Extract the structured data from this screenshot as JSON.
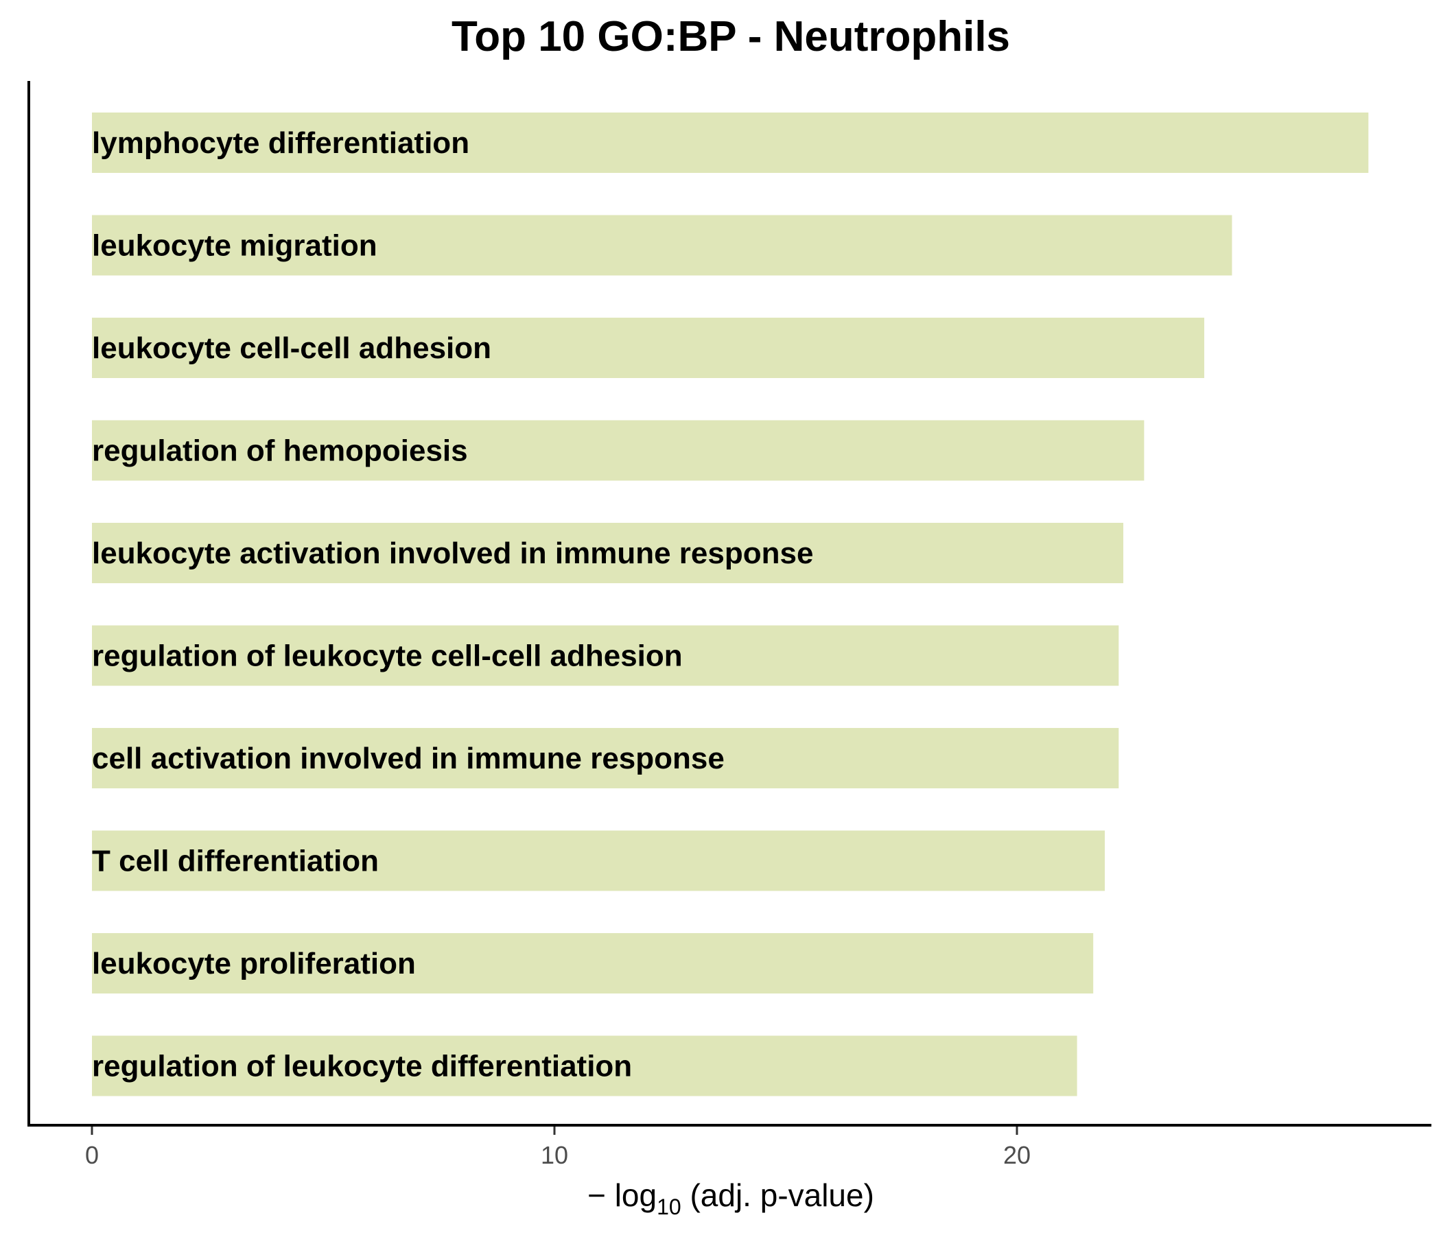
{
  "chart_data": {
    "type": "bar",
    "orientation": "horizontal",
    "title": "Top 10 GO:BP - Neutrophils",
    "xlabel": {
      "prefix": "− log",
      "subscript": "10",
      "suffix": " (adj. p-value)"
    },
    "ylabel": "",
    "xlim": [
      0,
      29
    ],
    "xticks": [
      0,
      10,
      20
    ],
    "grid": false,
    "legend": "none",
    "bar_color": "#dfe6b8",
    "categories": [
      "lymphocyte differentiation",
      "leukocyte migration",
      "leukocyte cell-cell adhesion",
      "regulation of hemopoiesis",
      "leukocyte activation involved in immune response",
      "regulation of leukocyte cell-cell adhesion",
      "cell activation involved in immune response",
      "T cell differentiation",
      "leukocyte proliferation",
      "regulation of leukocyte differentiation"
    ],
    "values": [
      27.6,
      24.65,
      24.05,
      22.75,
      22.3,
      22.2,
      22.2,
      21.9,
      21.65,
      21.3
    ]
  }
}
